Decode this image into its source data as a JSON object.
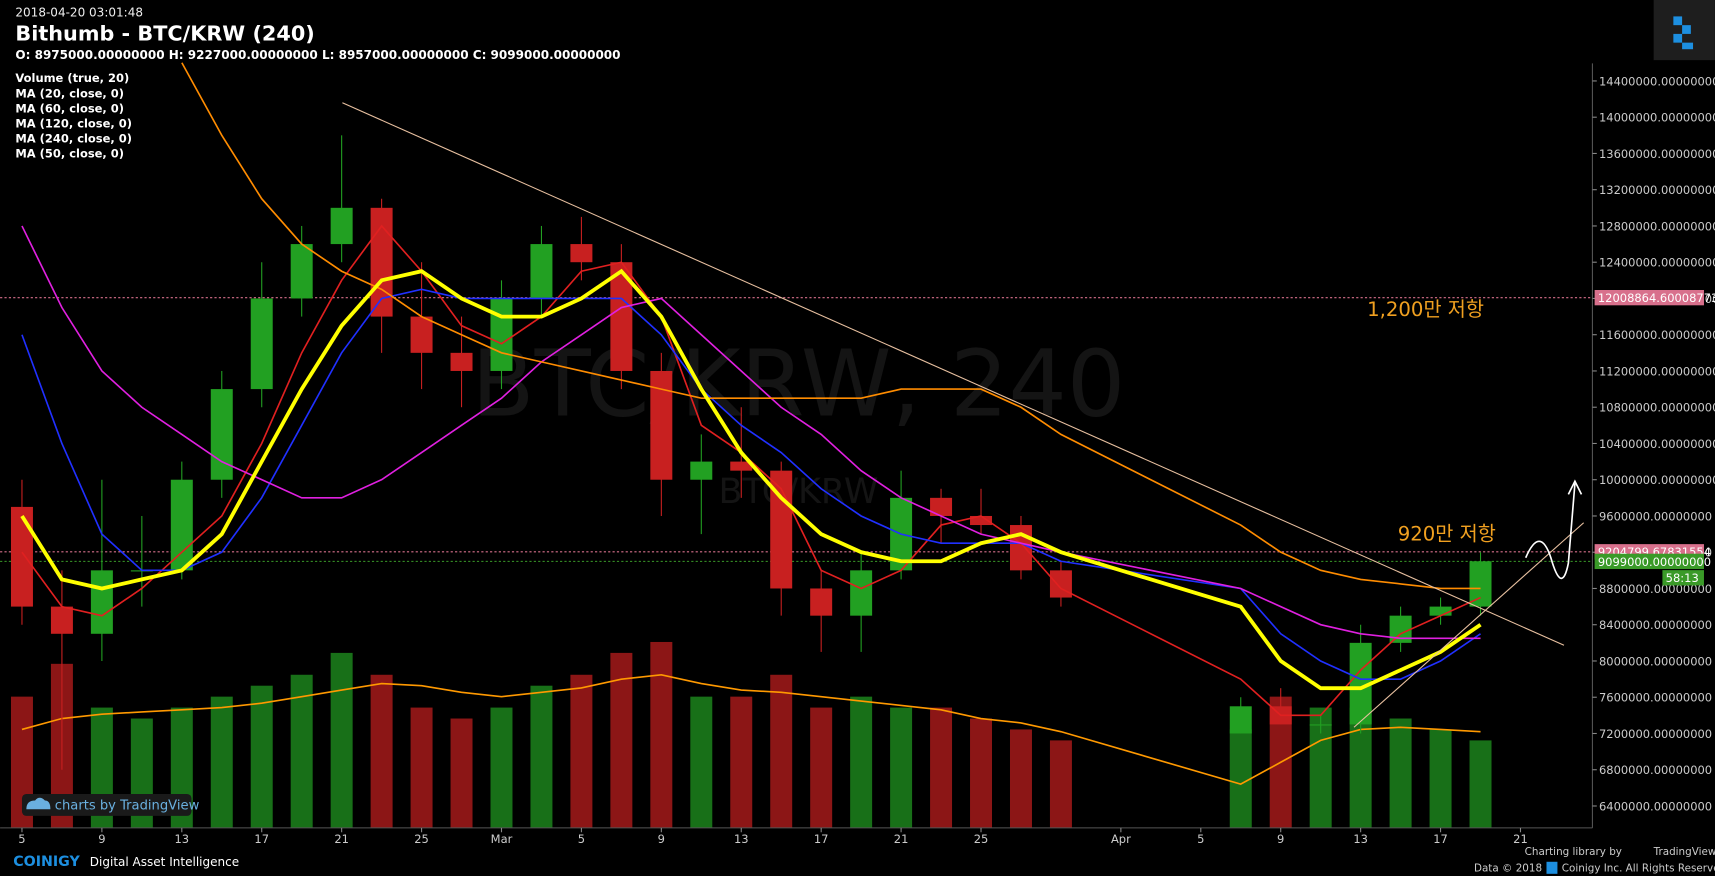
{
  "header": {
    "timestamp": "2018-04-20 03:01:48",
    "title": "Bithumb - BTC/KRW (240)",
    "ohlc_line": "O: 8975000.00000000 H: 9227000.00000000 L: 8957000.00000000 C: 9099000.00000000"
  },
  "chart_data": {
    "type": "candlestick",
    "watermark": "BTC/KRW, 240",
    "watermark_sub": "BTC/KRW",
    "x": [
      "2018-02-05",
      "2018-02-07",
      "2018-02-09",
      "2018-02-11",
      "2018-02-13",
      "2018-02-15",
      "2018-02-17",
      "2018-02-19",
      "2018-02-21",
      "2018-02-23",
      "2018-02-25",
      "2018-02-27",
      "2018-03-01",
      "2018-03-03",
      "2018-03-05",
      "2018-03-07",
      "2018-03-09",
      "2018-03-11",
      "2018-03-13",
      "2018-03-15",
      "2018-03-17",
      "2018-03-19",
      "2018-03-21",
      "2018-03-23",
      "2018-03-25",
      "2018-03-27",
      "2018-03-29",
      "2018-04-07",
      "2018-04-09",
      "2018-04-11",
      "2018-04-13",
      "2018-04-15",
      "2018-04-17",
      "2018-04-19"
    ],
    "open": [
      9700000,
      8600000,
      8300000,
      9000000,
      9000000,
      10000000,
      11000000,
      12000000,
      12600000,
      13000000,
      11800000,
      11400000,
      11200000,
      12000000,
      12600000,
      12400000,
      11200000,
      10000000,
      10200000,
      10100000,
      8800000,
      8500000,
      9000000,
      9800000,
      9600000,
      9500000,
      9000000,
      7200000,
      7500000,
      7300000,
      7300000,
      8200000,
      8500000,
      8600000
    ],
    "high": [
      10000000,
      9000000,
      10000000,
      9600000,
      10200000,
      11200000,
      12400000,
      12800000,
      13800000,
      13100000,
      12400000,
      11800000,
      12200000,
      12800000,
      12900000,
      12600000,
      11400000,
      10500000,
      10800000,
      10200000,
      9000000,
      9200000,
      10100000,
      9900000,
      9900000,
      9600000,
      9100000,
      7600000,
      7700000,
      7400000,
      8400000,
      8600000,
      8700000,
      9200000
    ],
    "low": [
      8400000,
      6800000,
      8000000,
      8600000,
      8900000,
      9800000,
      10800000,
      11800000,
      12400000,
      11400000,
      11000000,
      10800000,
      11000000,
      11800000,
      12200000,
      11000000,
      9600000,
      9400000,
      9800000,
      8500000,
      8100000,
      8100000,
      8900000,
      9300000,
      9400000,
      8900000,
      8600000,
      7200000,
      7300000,
      7200000,
      7200000,
      8100000,
      8400000,
      8500000
    ],
    "close": [
      8600000,
      8300000,
      9000000,
      9000000,
      10000000,
      11000000,
      12000000,
      12600000,
      13000000,
      11800000,
      11400000,
      11200000,
      12000000,
      12600000,
      12400000,
      11200000,
      10000000,
      10200000,
      10100000,
      8800000,
      8500000,
      9000000,
      9800000,
      9600000,
      9500000,
      9000000,
      8700000,
      7500000,
      7300000,
      7300000,
      8200000,
      8500000,
      8600000,
      9100000
    ],
    "up_color": "#22a022",
    "down_color": "#c82020",
    "volume": {
      "name": "Volume (true, 20)",
      "values": [
        60,
        75,
        55,
        50,
        55,
        60,
        65,
        70,
        80,
        70,
        55,
        50,
        55,
        65,
        70,
        80,
        85,
        60,
        60,
        70,
        55,
        60,
        55,
        55,
        50,
        45,
        40,
        45,
        60,
        55,
        55,
        50,
        45,
        40
      ],
      "ma": [
        45,
        50,
        52,
        53,
        54,
        55,
        57,
        60,
        63,
        66,
        65,
        62,
        60,
        62,
        64,
        68,
        70,
        66,
        63,
        62,
        60,
        58,
        56,
        54,
        50,
        48,
        44,
        20,
        30,
        40,
        45,
        46,
        45,
        44
      ],
      "ma_color": "#ff9900"
    },
    "y2lim": [
      0,
      100
    ],
    "series": [
      {
        "name": "MA (20, close, 0)",
        "color": "#e02020",
        "values": [
          9200000,
          8600000,
          8500000,
          8800000,
          9200000,
          9600000,
          10400000,
          11400000,
          12200000,
          12800000,
          12300000,
          11700000,
          11500000,
          11800000,
          12300000,
          12400000,
          11800000,
          10600000,
          10300000,
          9900000,
          9000000,
          8800000,
          9000000,
          9500000,
          9600000,
          9300000,
          8800000,
          7800000,
          7400000,
          7400000,
          7900000,
          8300000,
          8500000,
          8700000
        ]
      },
      {
        "name": "MA (60, close, 0)",
        "color": "#2030ff",
        "values": [
          11600000,
          10400000,
          9400000,
          9000000,
          9000000,
          9200000,
          9800000,
          10600000,
          11400000,
          12000000,
          12100000,
          12000000,
          12000000,
          12000000,
          12000000,
          12000000,
          11600000,
          11000000,
          10600000,
          10300000,
          9900000,
          9600000,
          9400000,
          9300000,
          9300000,
          9300000,
          9100000,
          8800000,
          8300000,
          8000000,
          7800000,
          7800000,
          8000000,
          8300000
        ]
      },
      {
        "name": "MA (120, close, 0)",
        "color": "#e020e0",
        "values": [
          12800000,
          11900000,
          11200000,
          10800000,
          10500000,
          10200000,
          10000000,
          9800000,
          9800000,
          10000000,
          10300000,
          10600000,
          10900000,
          11300000,
          11600000,
          11900000,
          12000000,
          11600000,
          11200000,
          10800000,
          10500000,
          10100000,
          9800000,
          9600000,
          9400000,
          9300000,
          9200000,
          8800000,
          8600000,
          8400000,
          8300000,
          8250000,
          8250000,
          8250000
        ]
      },
      {
        "name": "MA (240, close, 0)",
        "color": "#ff8c00",
        "values": [
          null,
          null,
          null,
          null,
          14600000,
          13800000,
          13100000,
          12600000,
          12300000,
          12100000,
          11800000,
          11600000,
          11400000,
          11300000,
          11200000,
          11100000,
          11000000,
          10900000,
          10900000,
          10900000,
          10900000,
          10900000,
          11000000,
          11000000,
          11000000,
          10800000,
          10500000,
          9500000,
          9200000,
          9000000,
          8900000,
          8850000,
          8800000,
          8800000
        ]
      },
      {
        "name": "MA (50, close, 0)",
        "color": "#ffff00",
        "values": [
          9600000,
          8900000,
          8800000,
          8900000,
          9000000,
          9400000,
          10200000,
          11000000,
          11700000,
          12200000,
          12300000,
          12000000,
          11800000,
          11800000,
          12000000,
          12300000,
          11800000,
          11000000,
          10300000,
          9800000,
          9400000,
          9200000,
          9100000,
          9100000,
          9300000,
          9400000,
          9200000,
          8600000,
          8000000,
          7700000,
          7700000,
          7900000,
          8100000,
          8400000
        ]
      }
    ],
    "levels": [
      {
        "value": 12008864.60008773,
        "label": "12008864.60008773",
        "color": "#d8708c"
      },
      {
        "value": 9204799.67831554,
        "label": "9204799.67831554",
        "color": "#d8708c"
      },
      {
        "value": 9099000,
        "label": "9099000.00000000",
        "color": "#3a9a28"
      }
    ],
    "countdown": "58:13",
    "annotations": [
      "1,200만 저항",
      "920만 저항"
    ],
    "xlim": [
      "2018-02-04",
      "2018-04-25"
    ],
    "ylim": [
      6150000,
      14650000
    ],
    "xticks": [
      {
        "value": "2018-02-05",
        "label": "5"
      },
      {
        "value": "2018-02-09",
        "label": "9"
      },
      {
        "value": "2018-02-13",
        "label": "13"
      },
      {
        "value": "2018-02-17",
        "label": "17"
      },
      {
        "value": "2018-02-21",
        "label": "21"
      },
      {
        "value": "2018-02-25",
        "label": "25"
      },
      {
        "value": "2018-03-01",
        "label": "Mar"
      },
      {
        "value": "2018-03-05",
        "label": "5"
      },
      {
        "value": "2018-03-09",
        "label": "9"
      },
      {
        "value": "2018-03-13",
        "label": "13"
      },
      {
        "value": "2018-03-17",
        "label": "17"
      },
      {
        "value": "2018-03-21",
        "label": "21"
      },
      {
        "value": "2018-03-25",
        "label": "25"
      },
      {
        "value": "2018-04-01",
        "label": "Apr"
      },
      {
        "value": "2018-04-05",
        "label": "5"
      },
      {
        "value": "2018-04-09",
        "label": "9"
      },
      {
        "value": "2018-04-13",
        "label": "13"
      },
      {
        "value": "2018-04-17",
        "label": "17"
      },
      {
        "value": "2018-04-21",
        "label": "21"
      }
    ],
    "yticks": [
      {
        "value": 6400000,
        "label": "6400000.00000000"
      },
      {
        "value": 6800000,
        "label": "6800000.00000000"
      },
      {
        "value": 7200000,
        "label": "7200000.00000000"
      },
      {
        "value": 7600000,
        "label": "7600000.00000000"
      },
      {
        "value": 8000000,
        "label": "8000000.00000000"
      },
      {
        "value": 8400000,
        "label": "8400000.00000000"
      },
      {
        "value": 8800000,
        "label": "8800000.00000000"
      },
      {
        "value": 9200000,
        "label": "9200000.00000000"
      },
      {
        "value": 9600000,
        "label": "9600000.00000000"
      },
      {
        "value": 10000000,
        "label": "10000000.00000000"
      },
      {
        "value": 10400000,
        "label": "10400000.00000000"
      },
      {
        "value": 10800000,
        "label": "10800000.00000000"
      },
      {
        "value": 11200000,
        "label": "11200000.00000000"
      },
      {
        "value": 11600000,
        "label": "11600000.00000000"
      },
      {
        "value": 12000000,
        "label": "12000000.00000000"
      },
      {
        "value": 12400000,
        "label": "12400000.00000000"
      },
      {
        "value": 12800000,
        "label": "12800000.00000000"
      },
      {
        "value": 13200000,
        "label": "13200000.00000000"
      },
      {
        "value": 13600000,
        "label": "13600000.00000000"
      },
      {
        "value": 14000000,
        "label": "14000000.00000000"
      },
      {
        "value": 14400000,
        "label": "14400000.00000000"
      }
    ],
    "grid": false
  },
  "footer": {
    "tv_badge": "charts by TradingView",
    "brand": "COINIGY",
    "tagline": "Digital Asset Intelligence",
    "charting_by": "Charting library by",
    "tv_name": "TradingView",
    "data_year": "Data © 2018",
    "rights": "Coinigy Inc. All Rights Reserved."
  }
}
